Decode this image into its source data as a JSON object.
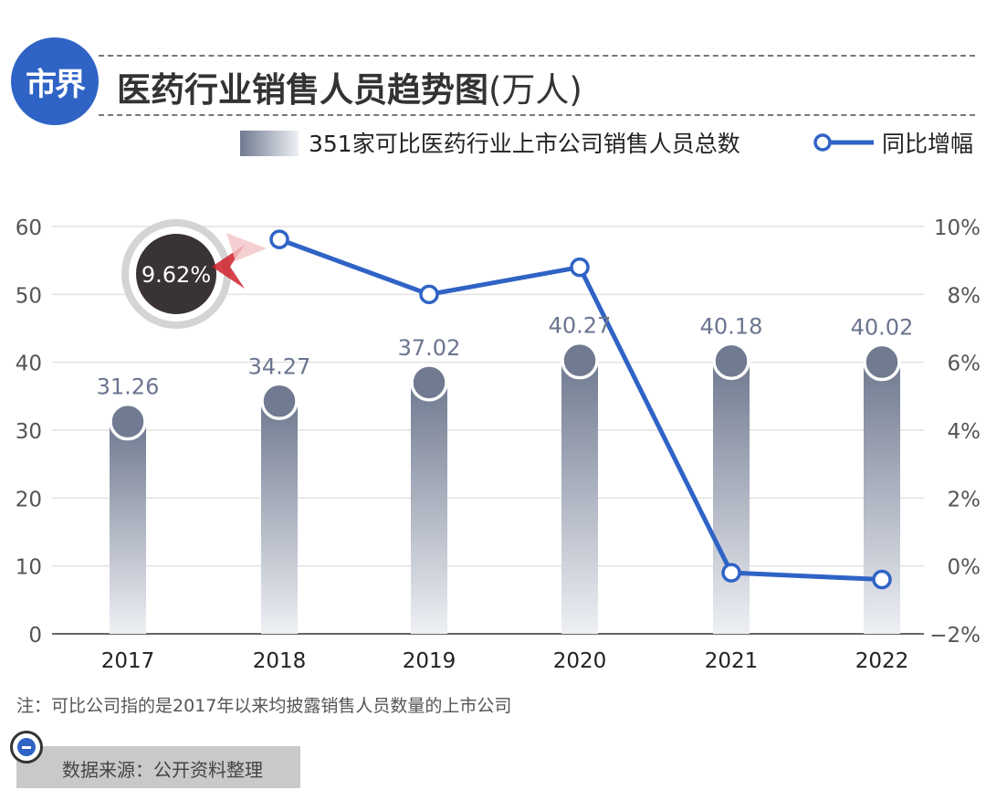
{
  "header": {
    "logo_text": "市界",
    "title": "医药行业销售人员趋势图",
    "title_unit": "(万人)"
  },
  "legend": {
    "bar_label": "351家可比医药行业上市公司销售人员总数",
    "line_label": "同比增幅"
  },
  "colors": {
    "line": "#2f63c5",
    "bar_dark": "#707a90",
    "bar_light": "#eef0f4",
    "callout_dark": "#3a3333",
    "callout_ring": "#d5d3d3",
    "arrow": "#d0202a"
  },
  "chart_data": {
    "type": "bar",
    "categories": [
      "2017",
      "2018",
      "2019",
      "2020",
      "2021",
      "2022"
    ],
    "series": [
      {
        "type": "bar",
        "axis": "left",
        "values": [
          31.26,
          34.27,
          37.02,
          40.27,
          40.18,
          40.02
        ]
      },
      {
        "type": "line",
        "axis": "right",
        "values": [
          null,
          9.62,
          8.0,
          8.8,
          -0.2,
          -0.4
        ]
      }
    ],
    "y_left": {
      "min": 0,
      "max": 60,
      "ticks": [
        "0",
        "10",
        "20",
        "30",
        "40",
        "50",
        "60"
      ]
    },
    "y_right": {
      "min": -2,
      "max": 10,
      "ticks": [
        "−2%",
        "0%",
        "2%",
        "4%",
        "6%",
        "8%",
        "10%"
      ]
    },
    "bar_labels": [
      "31.26",
      "34.27",
      "37.02",
      "40.27",
      "40.18",
      "40.02"
    ],
    "callout": {
      "text": "9.62%",
      "category": "2018"
    },
    "grid": true
  },
  "footer": {
    "note": "注：可比公司指的是2017年以来均披露销售人员数量的上市公司",
    "source": "数据来源：公开资料整理"
  }
}
